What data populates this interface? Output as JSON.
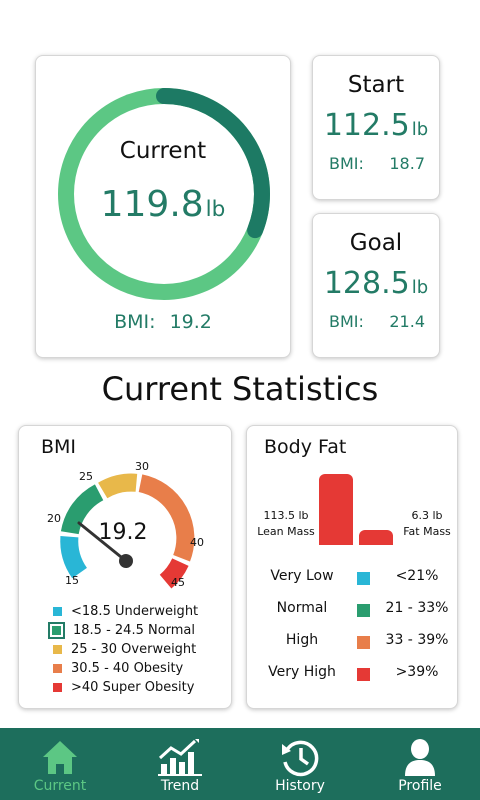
{
  "current": {
    "label": "Current",
    "weight": "119.8",
    "unit": "lb",
    "bmi_label": "BMI:",
    "bmi_value": "19.2",
    "ring_progress": 0.31
  },
  "start": {
    "label": "Start",
    "weight": "112.5",
    "unit": "lb",
    "bmi_label": "BMI:",
    "bmi_value": "18.7"
  },
  "goal": {
    "label": "Goal",
    "weight": "128.5",
    "unit": "lb",
    "bmi_label": "BMI:",
    "bmi_value": "21.4"
  },
  "section_title": "Current Statistics",
  "bmi_card": {
    "title": "BMI",
    "value": "19.2",
    "gauge_ticks": [
      "15",
      "20",
      "25",
      "30",
      "40",
      "45"
    ],
    "legend": [
      {
        "text": "<18.5 Underweight",
        "color": "#29b6d6"
      },
      {
        "text": "18.5 - 24.5 Normal",
        "color": "#2a9d6f"
      },
      {
        "text": "25 - 30 Overweight",
        "color": "#e8b84a"
      },
      {
        "text": "30.5 - 40 Obesity",
        "color": "#e87e4a"
      },
      {
        "text": ">40 Super Obesity",
        "color": "#e53935"
      }
    ]
  },
  "fat_card": {
    "title": "Body Fat",
    "lean_value": "113.5 lb",
    "lean_label": "Lean Mass",
    "fat_value": "6.3 lb",
    "fat_label": "Fat Mass",
    "categories": [
      {
        "label": "Very Low",
        "range": "<21%",
        "color": "#29b6d6"
      },
      {
        "label": "Normal",
        "range": "21 - 33%",
        "color": "#2a9d6f"
      },
      {
        "label": "High",
        "range": "33 - 39%",
        "color": "#e87e4a"
      },
      {
        "label": "Very High",
        "range": ">39%",
        "color": "#e53935"
      }
    ]
  },
  "nav": {
    "items": [
      {
        "label": "Current",
        "icon": "home-icon"
      },
      {
        "label": "Trend",
        "icon": "trend-chart-icon"
      },
      {
        "label": "History",
        "icon": "history-clock-icon"
      },
      {
        "label": "Profile",
        "icon": "profile-person-icon"
      }
    ]
  },
  "colors": {
    "teal_text": "#237b66",
    "ring_light": "#5cc784",
    "ring_dark": "#1d7a64",
    "nav_bg": "#1d6e5c",
    "nav_active": "#5cc784"
  }
}
